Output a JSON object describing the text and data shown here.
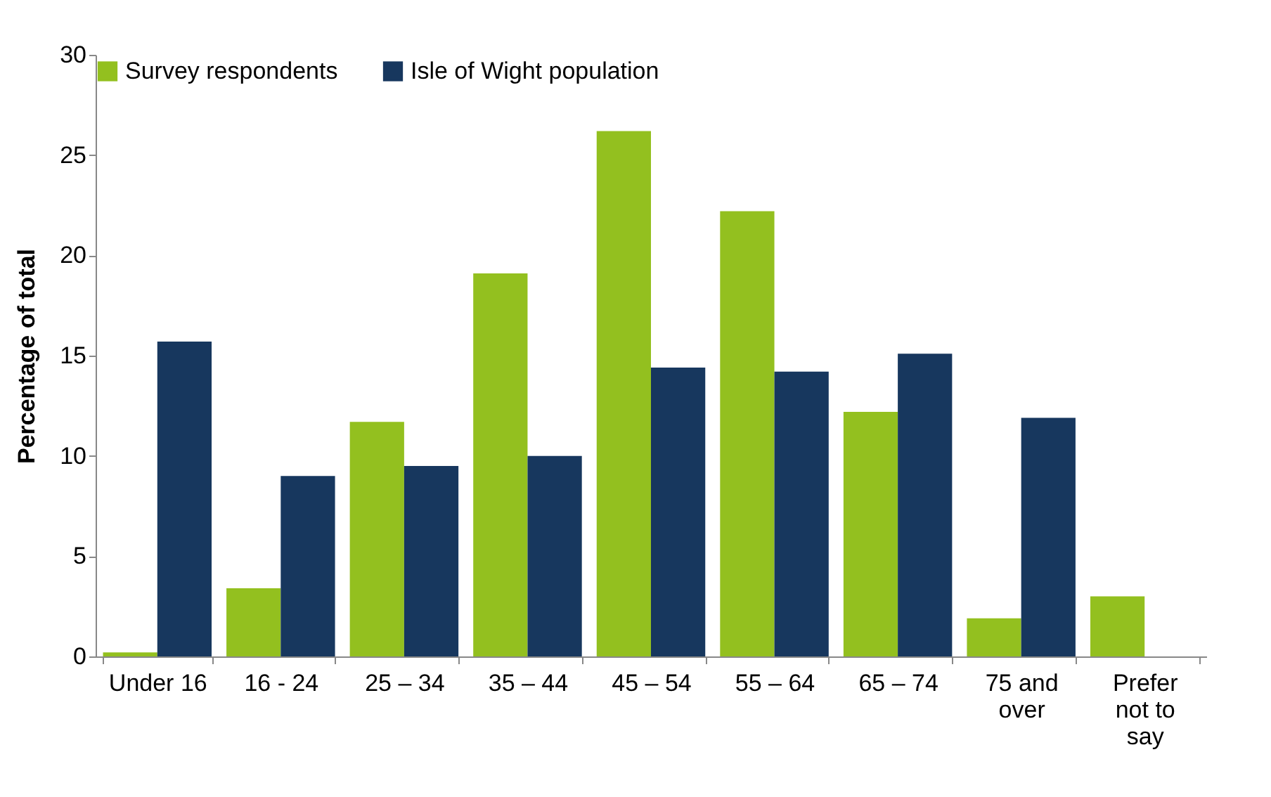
{
  "chart_data": {
    "type": "bar",
    "ylabel": "Percentage of total",
    "categories": [
      "Under 16",
      "16 - 24",
      "25 – 34",
      "35 – 44",
      "45 – 54",
      "55 – 64",
      "65 – 74",
      "75 and over",
      "Prefer not to say"
    ],
    "series": [
      {
        "name": "Survey respondents",
        "color": "#93c01f",
        "values": [
          0.2,
          3.4,
          11.7,
          19.1,
          26.2,
          22.2,
          12.2,
          1.9,
          3.0
        ]
      },
      {
        "name": "Isle of Wight population",
        "color": "#17375e",
        "values": [
          15.7,
          9.0,
          9.5,
          10.0,
          14.4,
          14.2,
          15.1,
          11.9,
          null
        ]
      }
    ],
    "ylim": [
      0,
      30
    ],
    "yticks": [
      0,
      5,
      10,
      15,
      20,
      25,
      30
    ],
    "grid": false,
    "legend": "top"
  }
}
